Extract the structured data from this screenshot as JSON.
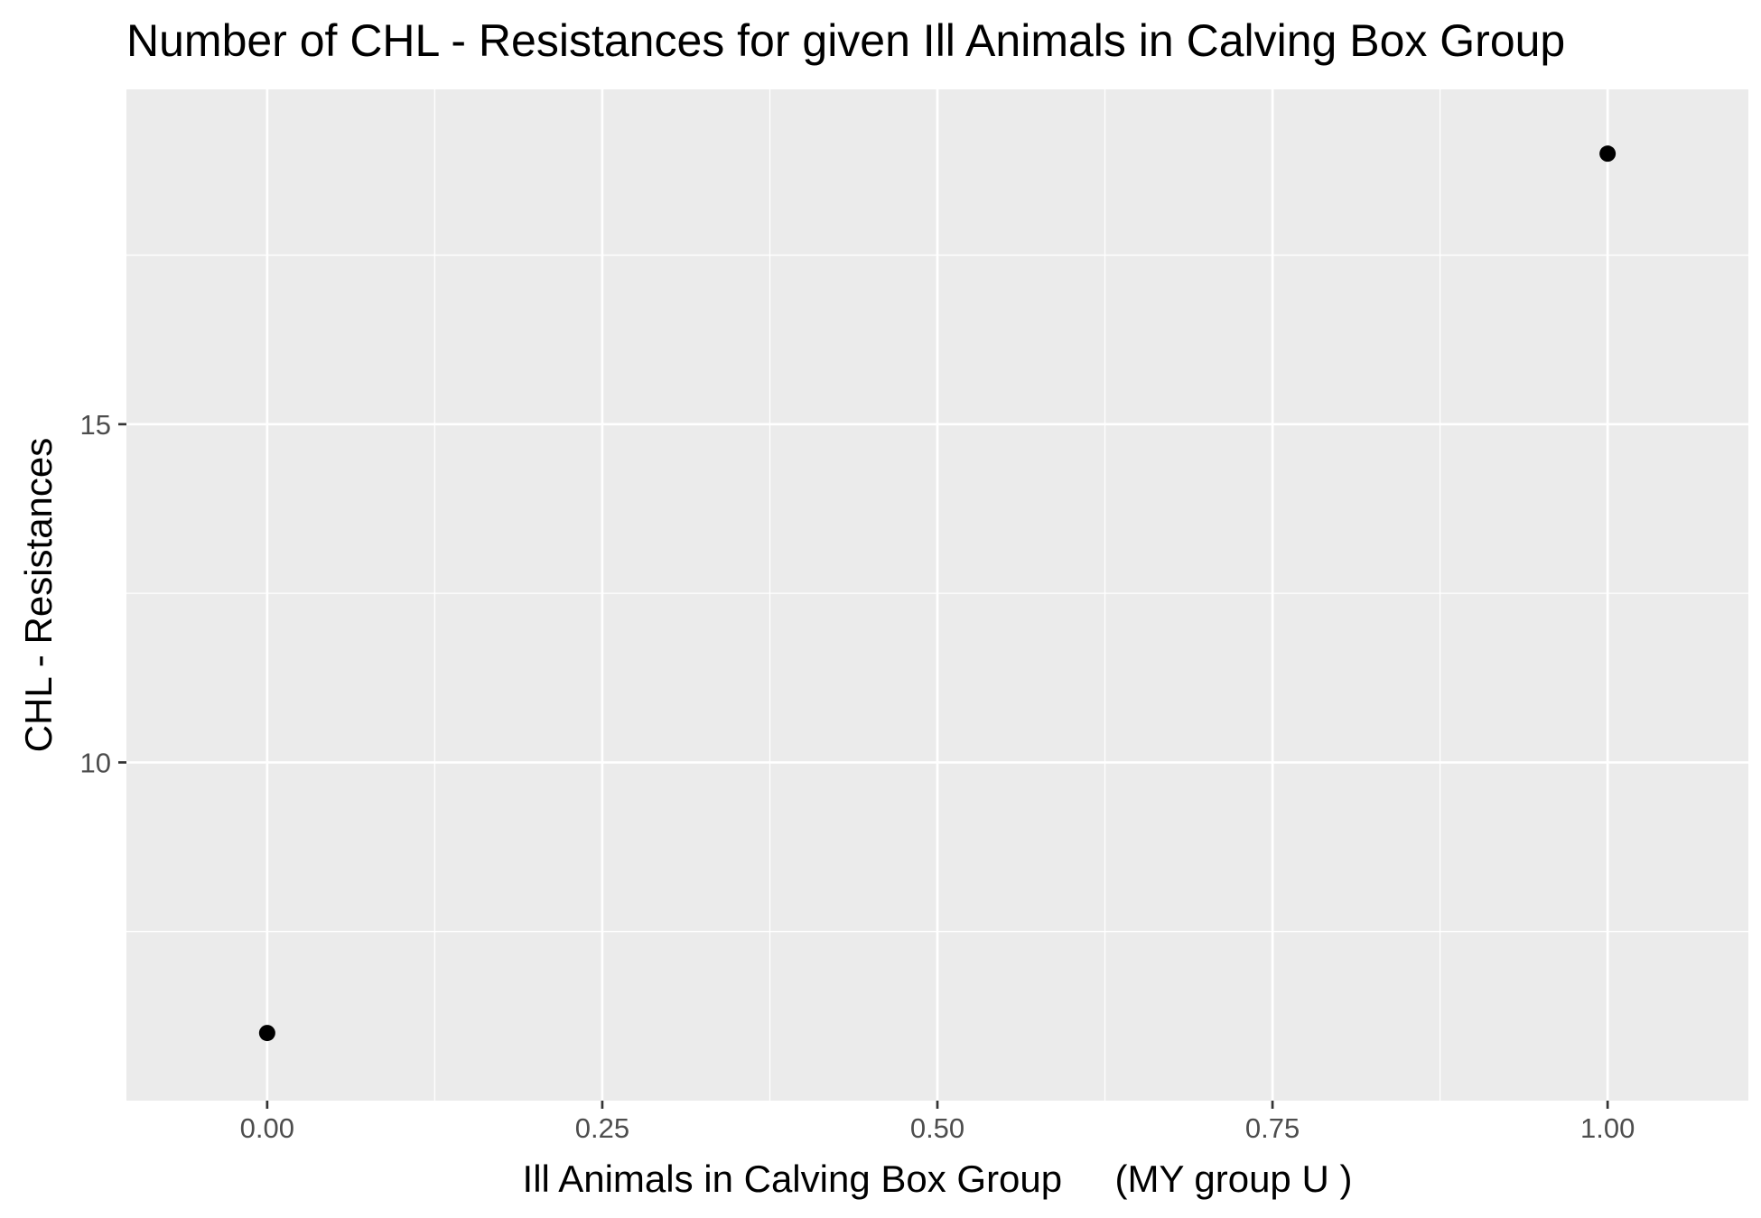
{
  "chart_data": {
    "type": "scatter",
    "title": "Number of CHL - Resistances for given Ill Animals in Calving Box Group",
    "xlabel": "Ill Animals in Calving Box Group     (MY group U )",
    "ylabel": "CHL - Resistances",
    "xlim": [
      -0.105,
      1.105
    ],
    "ylim": [
      5.0,
      19.95
    ],
    "x_ticks": [
      0.0,
      0.25,
      0.5,
      0.75,
      1.0
    ],
    "x_tick_labels": [
      "0.00",
      "0.25",
      "0.50",
      "0.75",
      "1.00"
    ],
    "x_minor_ticks": [
      0.125,
      0.375,
      0.625,
      0.875
    ],
    "y_ticks": [
      10,
      15
    ],
    "y_tick_labels": [
      "10",
      "15"
    ],
    "y_minor_ticks": [
      7.5,
      12.5,
      17.5
    ],
    "grid": true,
    "points": [
      {
        "x": 0.0,
        "y": 6
      },
      {
        "x": 1.0,
        "y": 19
      }
    ],
    "colors": {
      "panel_background": "#ebebeb",
      "grid": "#ffffff",
      "point": "#000000",
      "tick_label": "#4d4d4d",
      "tick_mark": "#333333"
    }
  }
}
